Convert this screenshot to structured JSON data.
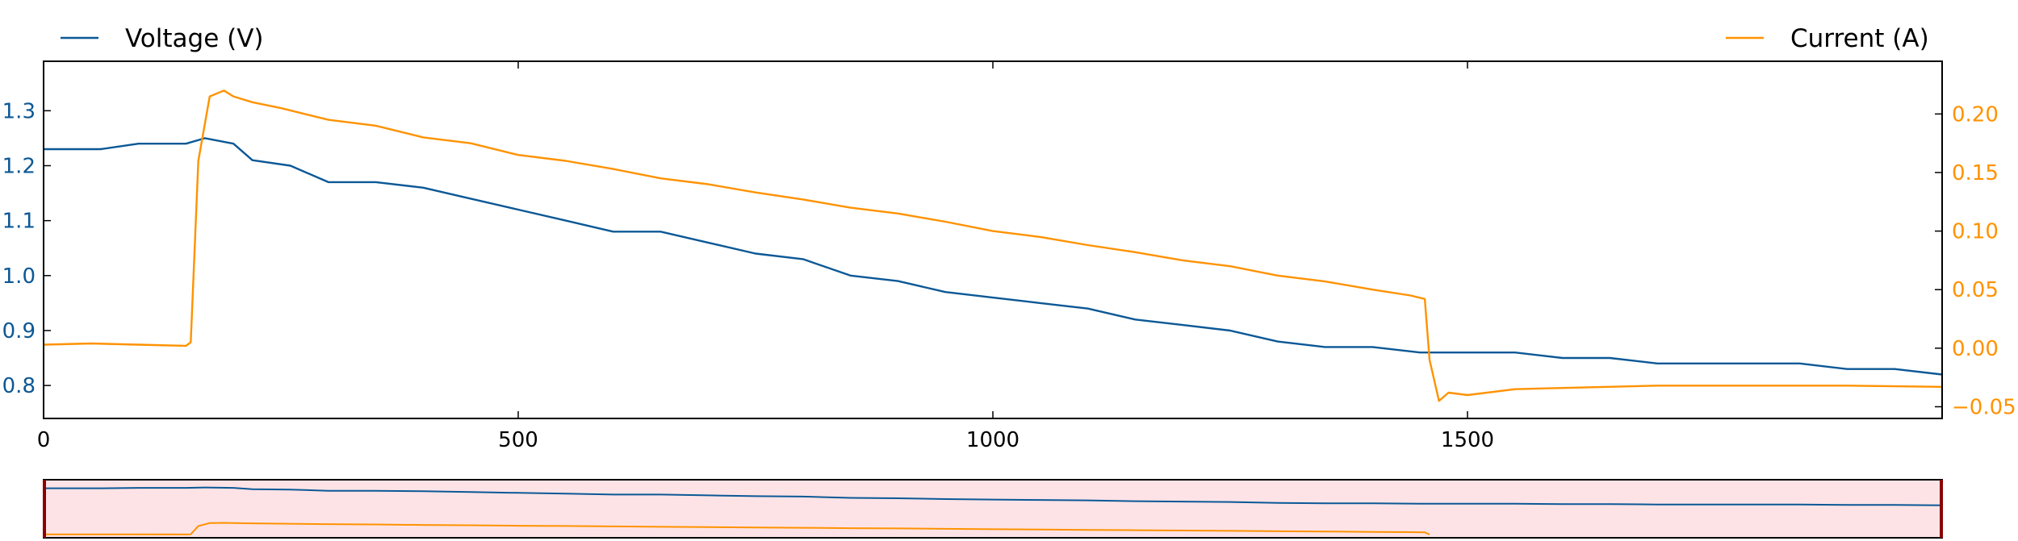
{
  "colors": {
    "voltage": "#0b5896",
    "current": "#ff9200",
    "brush_fill": "#fde3e6",
    "brush_edge": "#8b0000"
  },
  "legend": {
    "voltage_label": "Voltage (V)",
    "current_label": "Current (A)"
  },
  "chart_data": {
    "type": "line",
    "x": {
      "range": [
        0,
        2000
      ],
      "ticks": [
        0,
        500,
        1000,
        1500
      ]
    },
    "y_left": {
      "label": "",
      "range": [
        0.74,
        1.39
      ],
      "ticks": [
        0.8,
        0.9,
        1.0,
        1.1,
        1.2,
        1.3
      ]
    },
    "y_right": {
      "label": "",
      "range": [
        -0.06,
        0.245
      ],
      "ticks": [
        -0.05,
        0.0,
        0.05,
        0.1,
        0.15,
        0.2
      ]
    },
    "tick_labels": {
      "x": [
        "0",
        "500",
        "1000",
        "1500"
      ],
      "y_left": [
        "0.8",
        "0.9",
        "1.0",
        "1.1",
        "1.2",
        "1.3"
      ],
      "y_right": [
        "−0.05",
        "0.00",
        "0.05",
        "0.10",
        "0.15",
        "0.20"
      ]
    },
    "legend_placement": "top-left and top-right",
    "grid": false,
    "series": [
      {
        "name": "Voltage (V)",
        "axis": "left",
        "points": [
          [
            0,
            1.23
          ],
          [
            60,
            1.23
          ],
          [
            100,
            1.24
          ],
          [
            150,
            1.24
          ],
          [
            170,
            1.25
          ],
          [
            200,
            1.24
          ],
          [
            220,
            1.21
          ],
          [
            260,
            1.2
          ],
          [
            300,
            1.17
          ],
          [
            350,
            1.17
          ],
          [
            400,
            1.16
          ],
          [
            450,
            1.14
          ],
          [
            500,
            1.12
          ],
          [
            550,
            1.1
          ],
          [
            600,
            1.08
          ],
          [
            650,
            1.08
          ],
          [
            700,
            1.06
          ],
          [
            750,
            1.04
          ],
          [
            800,
            1.03
          ],
          [
            850,
            1.0
          ],
          [
            900,
            0.99
          ],
          [
            950,
            0.97
          ],
          [
            1000,
            0.96
          ],
          [
            1050,
            0.95
          ],
          [
            1100,
            0.94
          ],
          [
            1150,
            0.92
          ],
          [
            1200,
            0.91
          ],
          [
            1250,
            0.9
          ],
          [
            1300,
            0.88
          ],
          [
            1350,
            0.87
          ],
          [
            1400,
            0.87
          ],
          [
            1450,
            0.86
          ],
          [
            1500,
            0.86
          ],
          [
            1550,
            0.86
          ],
          [
            1600,
            0.85
          ],
          [
            1650,
            0.85
          ],
          [
            1700,
            0.84
          ],
          [
            1750,
            0.84
          ],
          [
            1800,
            0.84
          ],
          [
            1850,
            0.84
          ],
          [
            1900,
            0.83
          ],
          [
            1950,
            0.83
          ],
          [
            2000,
            0.82
          ]
        ]
      },
      {
        "name": "Current (A)",
        "axis": "right",
        "points": [
          [
            0,
            0.003
          ],
          [
            50,
            0.004
          ],
          [
            100,
            0.003
          ],
          [
            150,
            0.002
          ],
          [
            155,
            0.005
          ],
          [
            163,
            0.16
          ],
          [
            175,
            0.215
          ],
          [
            190,
            0.22
          ],
          [
            200,
            0.215
          ],
          [
            220,
            0.21
          ],
          [
            250,
            0.205
          ],
          [
            300,
            0.195
          ],
          [
            350,
            0.19
          ],
          [
            400,
            0.18
          ],
          [
            450,
            0.175
          ],
          [
            500,
            0.165
          ],
          [
            550,
            0.16
          ],
          [
            600,
            0.153
          ],
          [
            650,
            0.145
          ],
          [
            700,
            0.14
          ],
          [
            750,
            0.133
          ],
          [
            800,
            0.127
          ],
          [
            850,
            0.12
          ],
          [
            900,
            0.115
          ],
          [
            950,
            0.108
          ],
          [
            1000,
            0.1
          ],
          [
            1050,
            0.095
          ],
          [
            1100,
            0.088
          ],
          [
            1150,
            0.082
          ],
          [
            1200,
            0.075
          ],
          [
            1250,
            0.07
          ],
          [
            1300,
            0.062
          ],
          [
            1350,
            0.057
          ],
          [
            1400,
            0.05
          ],
          [
            1440,
            0.045
          ],
          [
            1455,
            0.042
          ],
          [
            1460,
            -0.01
          ],
          [
            1470,
            -0.045
          ],
          [
            1480,
            -0.038
          ],
          [
            1500,
            -0.04
          ],
          [
            1550,
            -0.035
          ],
          [
            1600,
            -0.034
          ],
          [
            1700,
            -0.032
          ],
          [
            1800,
            -0.032
          ],
          [
            1900,
            -0.032
          ],
          [
            2000,
            -0.033
          ]
        ]
      }
    ],
    "navigator": {
      "selection_range": [
        0,
        2000
      ]
    }
  }
}
